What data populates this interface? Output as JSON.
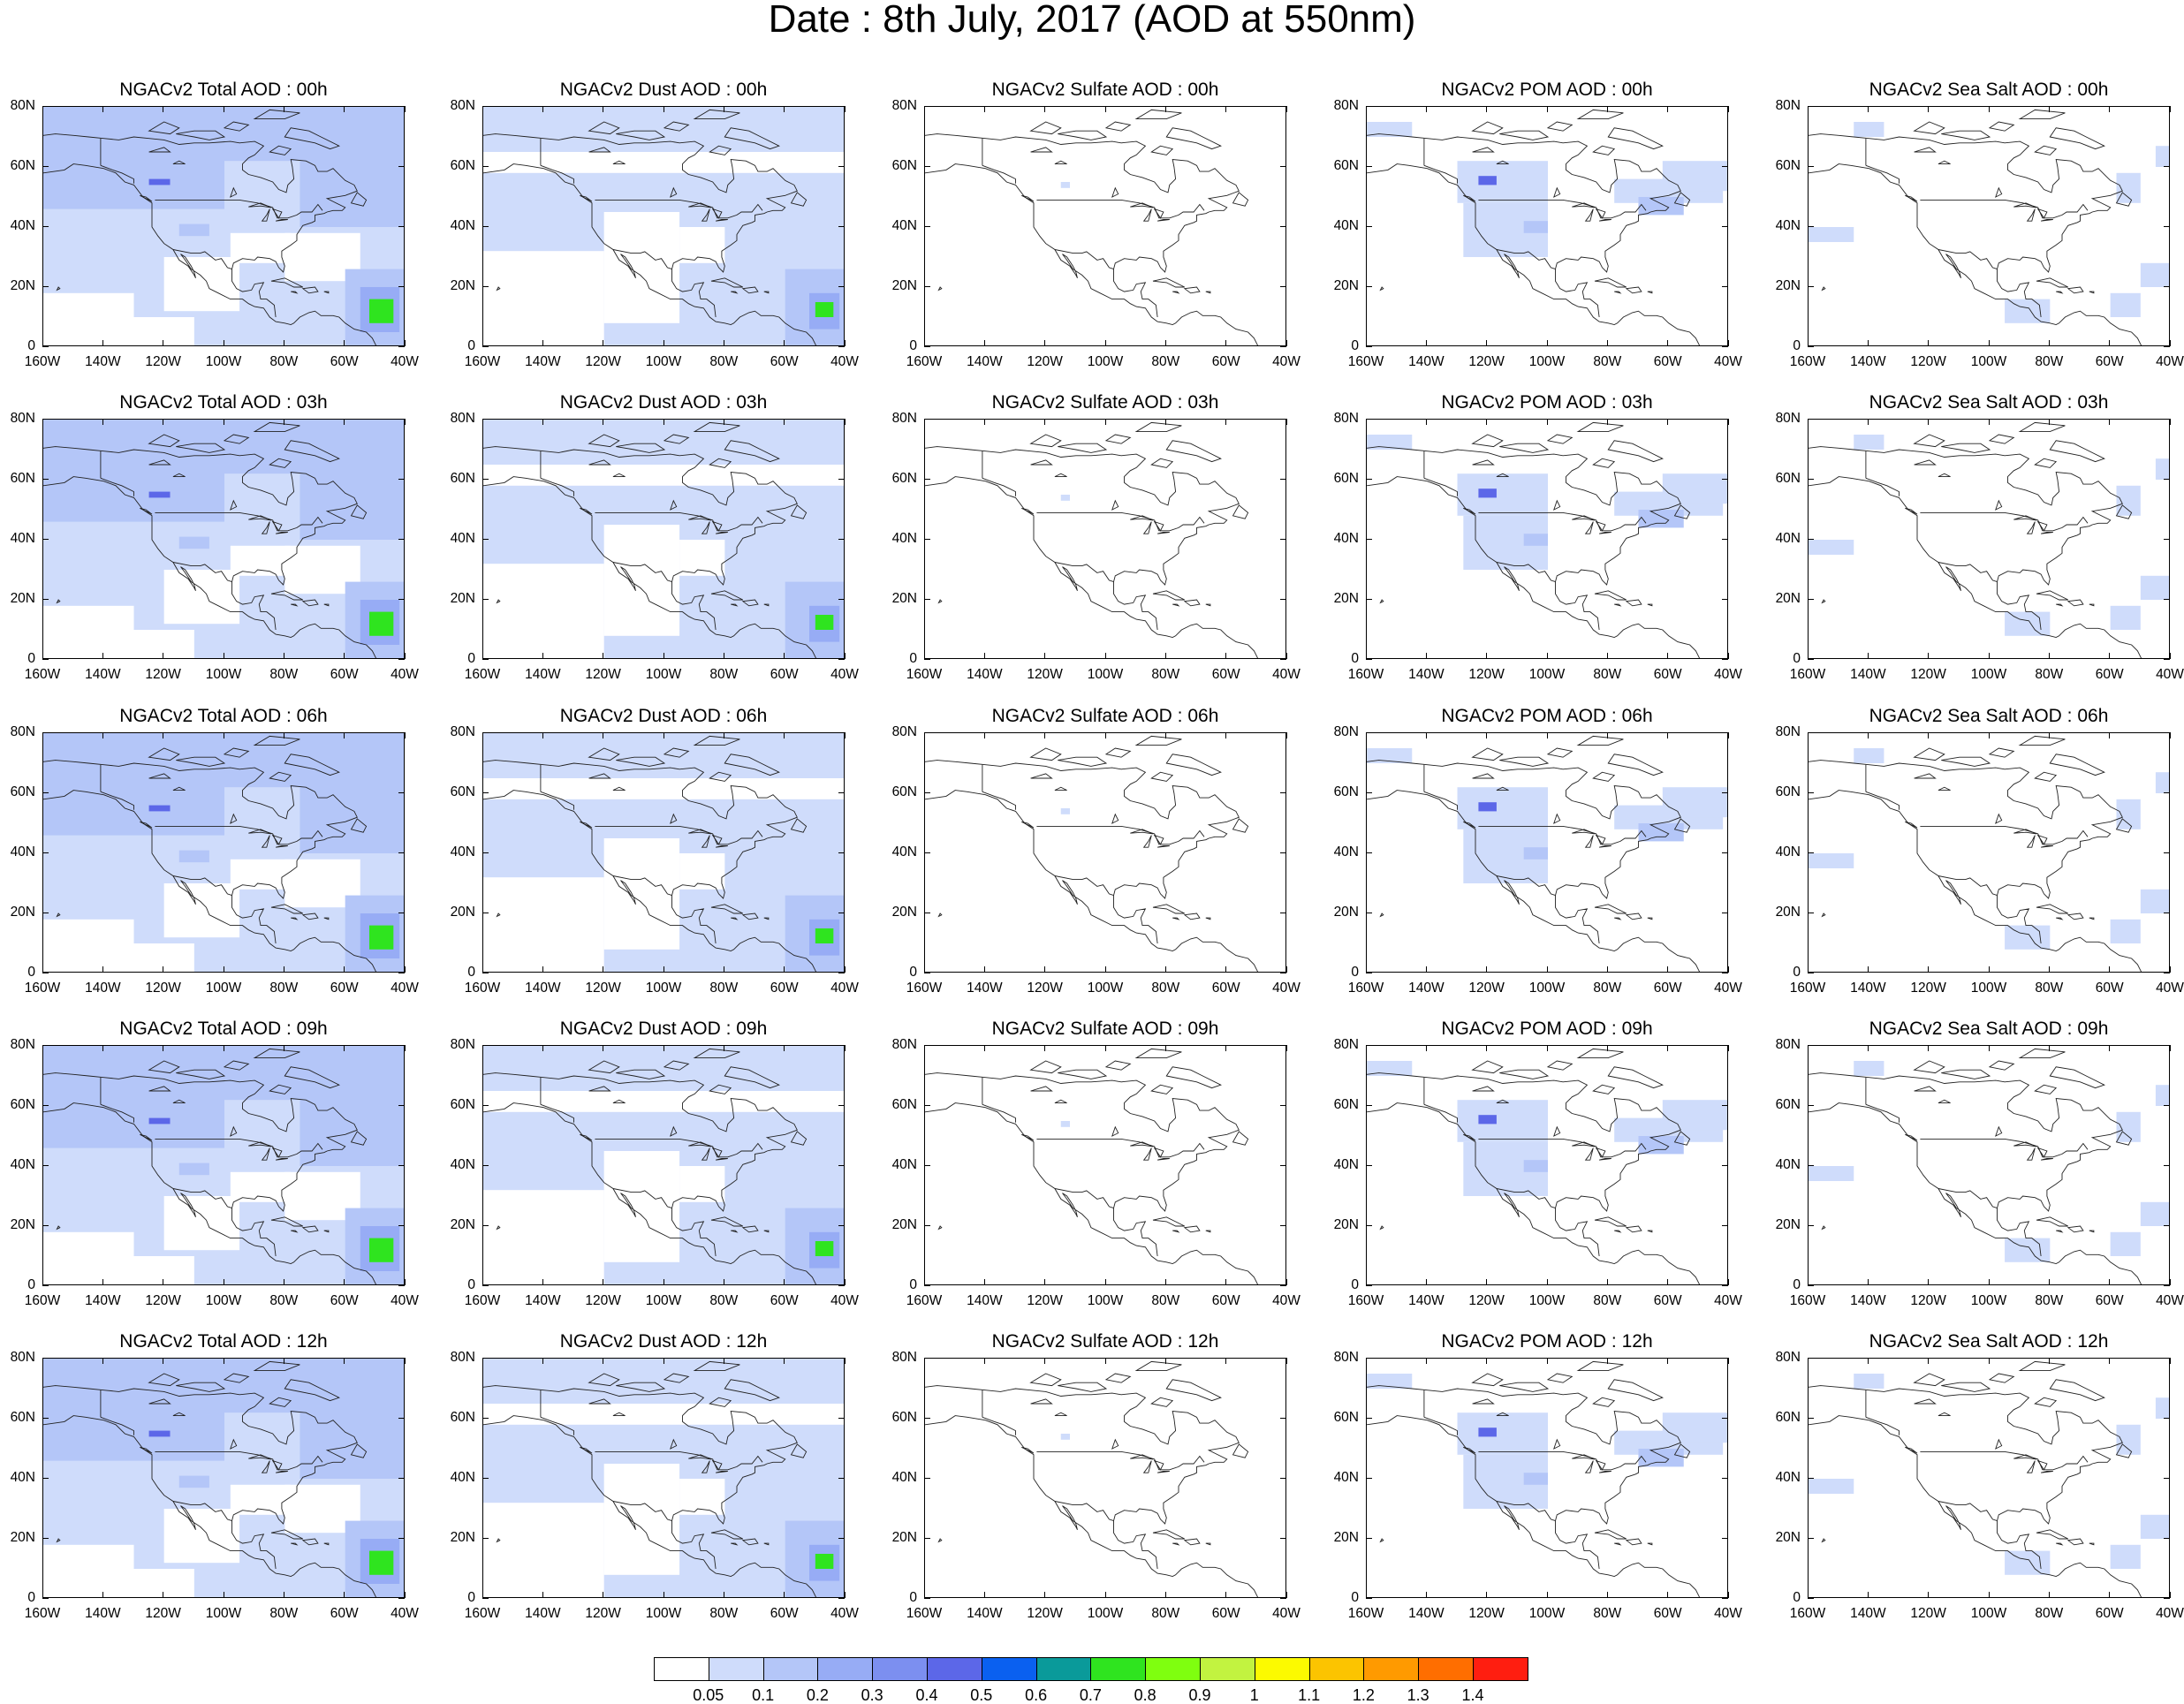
{
  "title": "Date : 8th July, 2017 (AOD at 550nm)",
  "chart_data": {
    "type": "heatmap",
    "title": "Date : 8th July, 2017 (AOD at 550nm)",
    "x_ticks": [
      "160W",
      "140W",
      "120W",
      "100W",
      "80W",
      "60W",
      "40W"
    ],
    "y_ticks": [
      "80N",
      "60N",
      "40N",
      "20N",
      "0"
    ],
    "xlim": [
      -160,
      -40
    ],
    "ylim": [
      0,
      80
    ],
    "colorbar": {
      "levels": [
        "0.05",
        "0.1",
        "0.2",
        "0.3",
        "0.4",
        "0.5",
        "0.6",
        "0.7",
        "0.8",
        "0.9",
        "1",
        "1.1",
        "1.2",
        "1.3",
        "1.4"
      ],
      "colors": [
        "#ffffff",
        "#cfdcfb",
        "#b4c6f8",
        "#97acf5",
        "#7c8ff0",
        "#5c67e8",
        "#0a60f0",
        "#0a9a9a",
        "#2fe41f",
        "#7fff0f",
        "#c2f340",
        "#fcfa00",
        "#fcc400",
        "#ff9a00",
        "#ff6e00",
        "#ff1e10"
      ]
    },
    "panels": [
      {
        "title": "NGACv2 Total AOD : 00h",
        "species": "total"
      },
      {
        "title": "NGACv2 Dust AOD : 00h",
        "species": "dust"
      },
      {
        "title": "NGACv2 Sulfate AOD : 00h",
        "species": "sulfate"
      },
      {
        "title": "NGACv2 POM AOD : 00h",
        "species": "pom"
      },
      {
        "title": "NGACv2 Sea Salt AOD : 00h",
        "species": "seasalt"
      },
      {
        "title": "NGACv2 Total AOD : 03h",
        "species": "total"
      },
      {
        "title": "NGACv2 Dust AOD : 03h",
        "species": "dust"
      },
      {
        "title": "NGACv2 Sulfate AOD : 03h",
        "species": "sulfate"
      },
      {
        "title": "NGACv2 POM AOD : 03h",
        "species": "pom"
      },
      {
        "title": "NGACv2 Sea Salt AOD : 03h",
        "species": "seasalt"
      },
      {
        "title": "NGACv2 Total AOD : 06h",
        "species": "total"
      },
      {
        "title": "NGACv2 Dust AOD : 06h",
        "species": "dust"
      },
      {
        "title": "NGACv2 Sulfate AOD : 06h",
        "species": "sulfate"
      },
      {
        "title": "NGACv2 POM AOD : 06h",
        "species": "pom"
      },
      {
        "title": "NGACv2 Sea Salt AOD : 06h",
        "species": "seasalt"
      },
      {
        "title": "NGACv2 Total AOD : 09h",
        "species": "total"
      },
      {
        "title": "NGACv2 Dust AOD : 09h",
        "species": "dust"
      },
      {
        "title": "NGACv2 Sulfate AOD : 09h",
        "species": "sulfate"
      },
      {
        "title": "NGACv2 POM AOD : 09h",
        "species": "pom"
      },
      {
        "title": "NGACv2 Sea Salt  AOD : 09h",
        "species": "seasalt"
      },
      {
        "title": "NGACv2 Total AOD  : 12h",
        "species": "total"
      },
      {
        "title": "NGACv2 Dust AOD : 12h",
        "species": "dust"
      },
      {
        "title": "NGACv2 Sulfate AOD : 12h",
        "species": "sulfate"
      },
      {
        "title": "NGACv2 POM  AOD : 12h",
        "species": "pom"
      },
      {
        "title": "NGACv2 Sea Salt  AOD : 12h",
        "species": "seasalt"
      }
    ]
  }
}
